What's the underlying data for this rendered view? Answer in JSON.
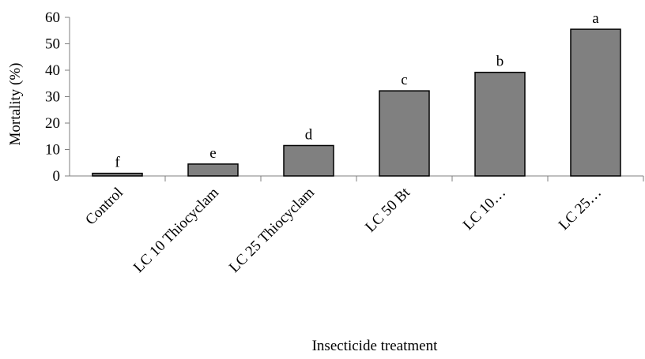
{
  "chart_data": {
    "type": "bar",
    "title": "",
    "xlabel": "Insecticide treatment",
    "ylabel": "Mortality (%)",
    "ylim": [
      0,
      60
    ],
    "yticks": [
      0,
      10,
      20,
      30,
      40,
      50,
      60
    ],
    "grid": false,
    "categories": [
      "Control",
      "LC 10 Thiocyclam",
      "LC 25 Thiocyclam",
      "LC 50 Bt",
      "LC 10…",
      "LC 25…"
    ],
    "values": [
      1,
      4.5,
      11.5,
      32.2,
      39.2,
      55.5
    ],
    "data_labels": [
      "f",
      "e",
      "d",
      "c",
      "b",
      "a"
    ],
    "bar_color": "#808080",
    "bar_edge_color": "#000000"
  }
}
